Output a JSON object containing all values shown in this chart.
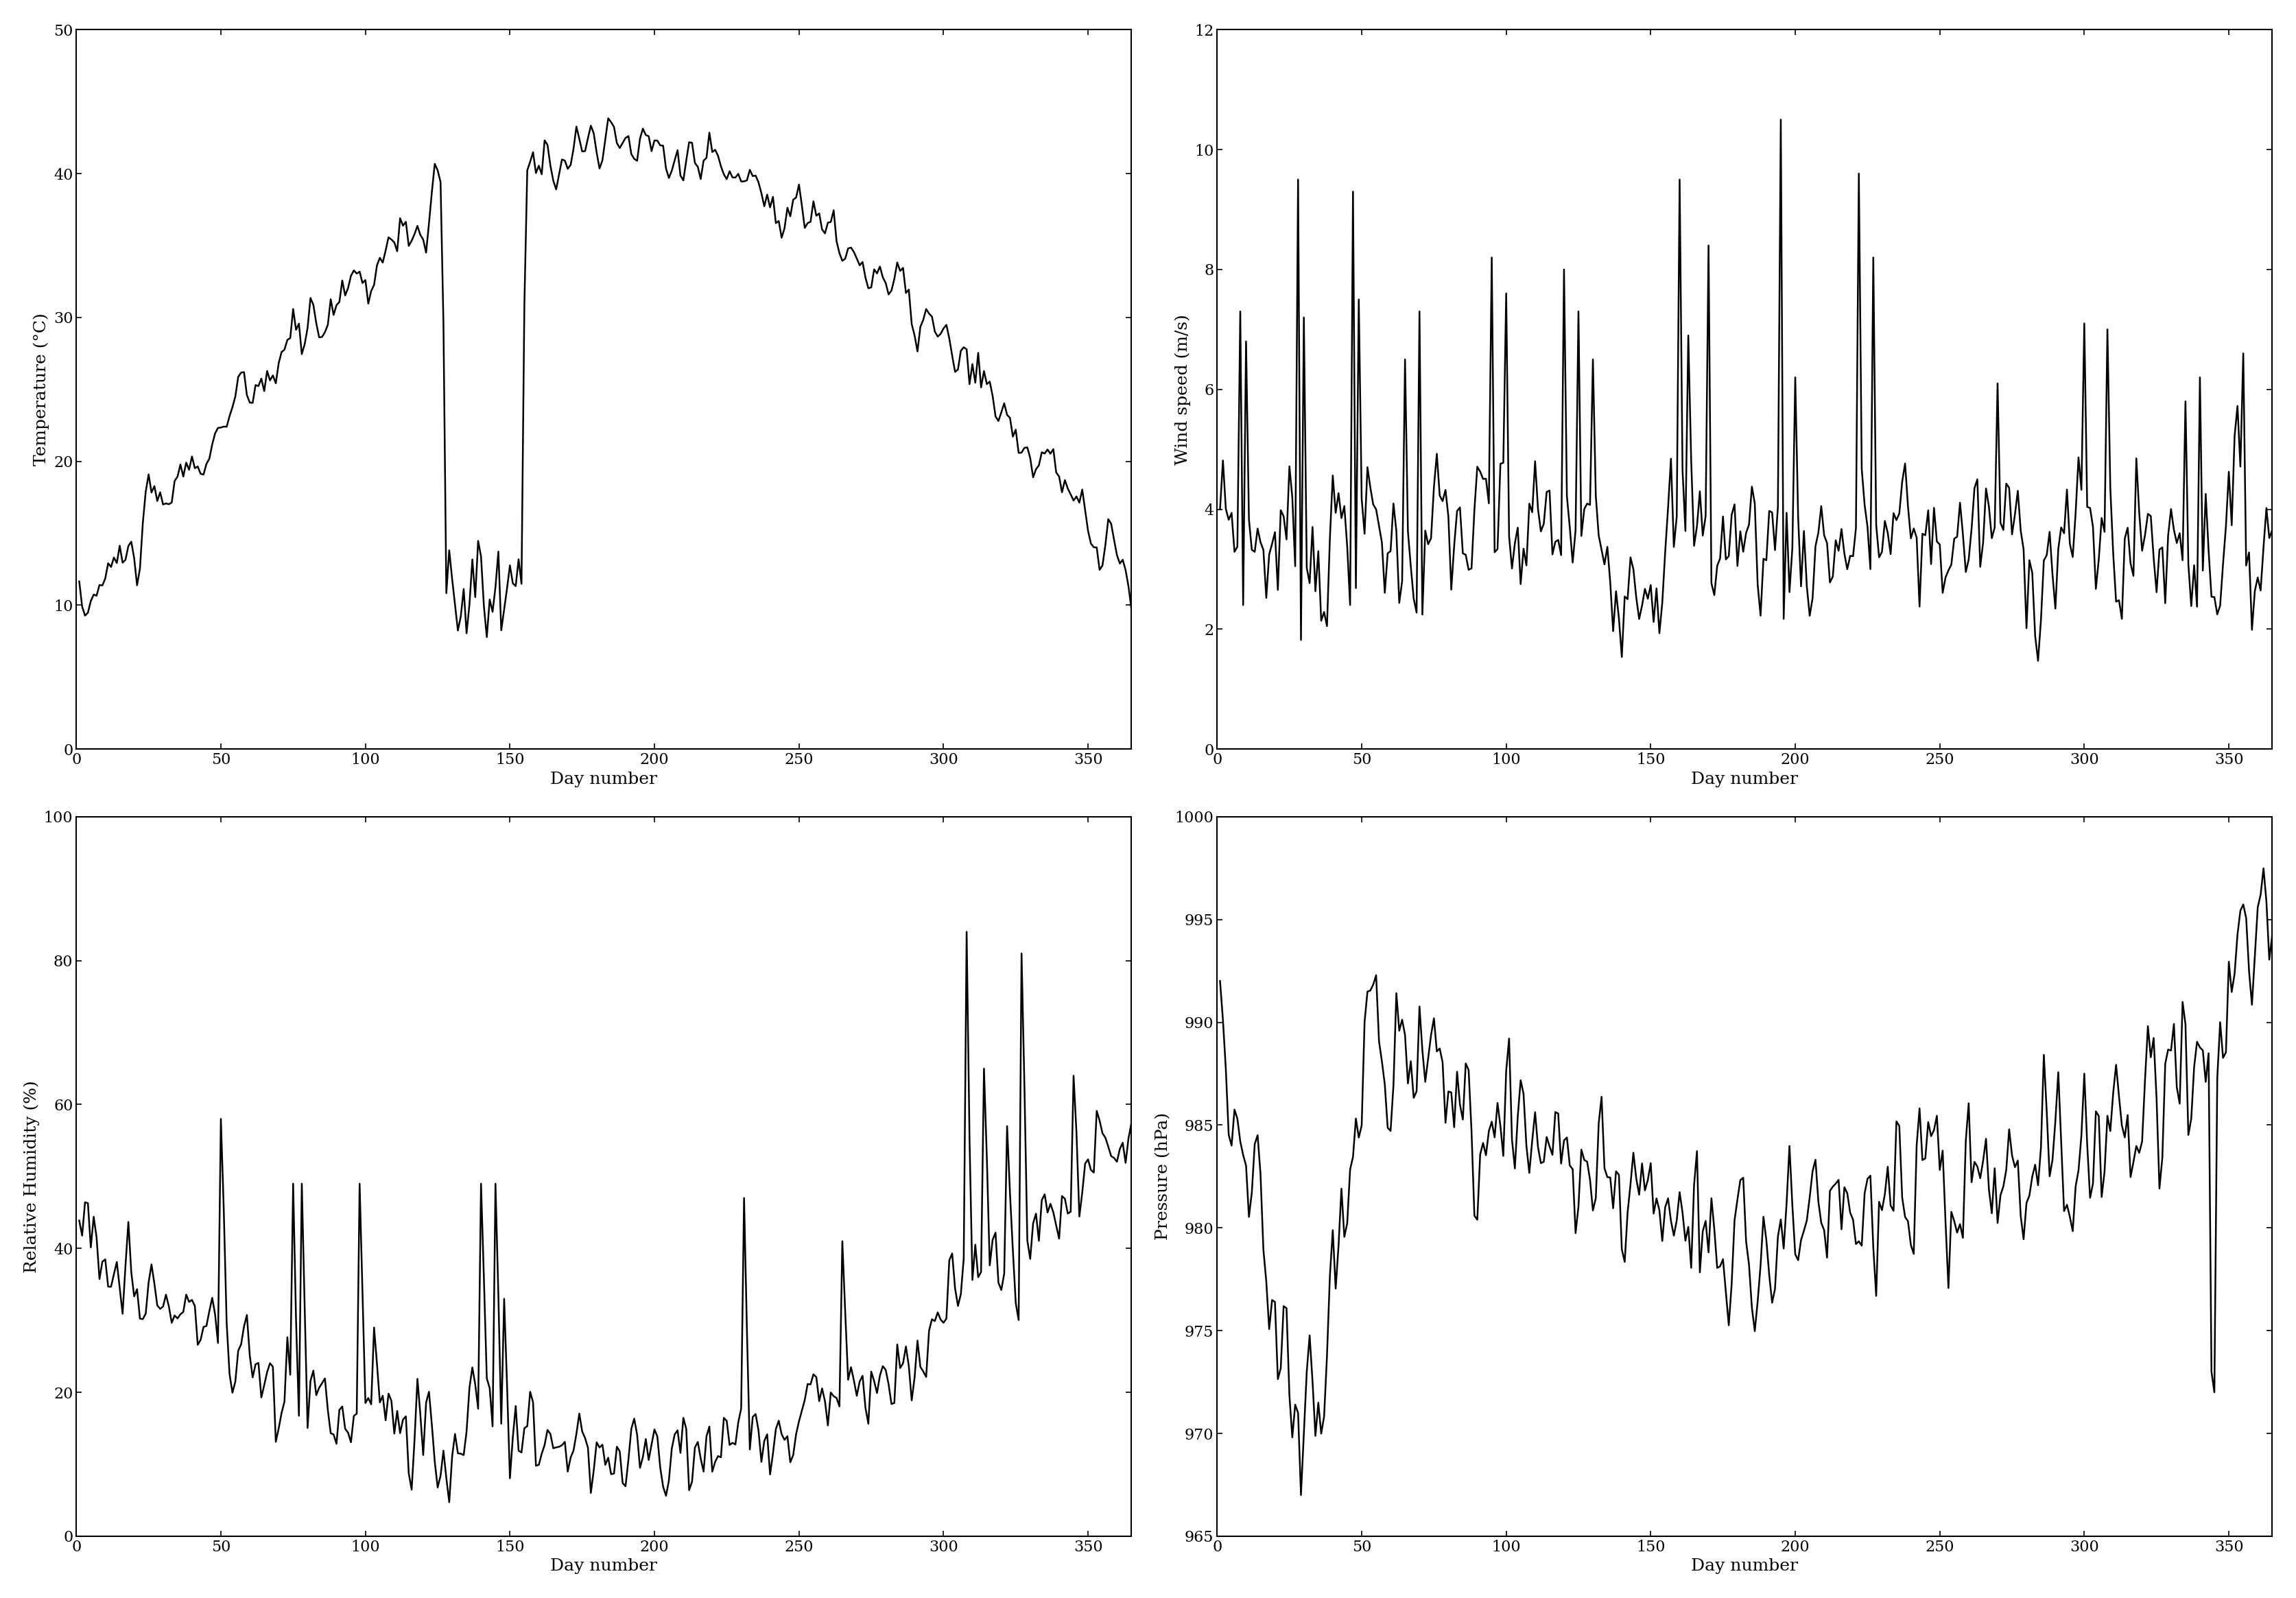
{
  "temp_ylim": [
    0,
    50
  ],
  "wind_ylim": [
    0,
    12
  ],
  "humidity_ylim": [
    0,
    100
  ],
  "pressure_ylim": [
    965,
    1000
  ],
  "xlim": [
    0,
    365
  ],
  "xlabel": "Day number",
  "temp_ylabel": "Temperature (°C)",
  "wind_ylabel": "Wind speed (m/s)",
  "humidity_ylabel": "Relative Humidity (%)",
  "pressure_ylabel": "Pressure (hPa)",
  "temp_yticks": [
    0,
    10,
    20,
    30,
    40,
    50
  ],
  "wind_yticks": [
    0,
    2,
    4,
    6,
    8,
    10,
    12
  ],
  "humidity_yticks": [
    0,
    20,
    40,
    60,
    80,
    100
  ],
  "pressure_yticks": [
    965,
    970,
    975,
    980,
    985,
    990,
    995,
    1000
  ],
  "xticks": [
    0,
    50,
    100,
    150,
    200,
    250,
    300,
    350
  ],
  "line_color": "#000000",
  "line_width": 1.8,
  "bg_color": "#ffffff",
  "tick_size": 16,
  "label_size": 18,
  "seed": 42
}
